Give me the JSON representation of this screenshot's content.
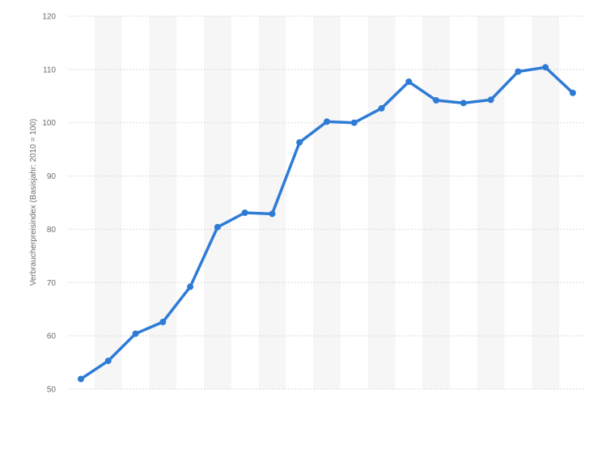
{
  "chart_data": {
    "type": "line",
    "title": "",
    "xlabel": "",
    "ylabel": "Verbraucherpreisindex (Basisjahr: 2010 = 100)",
    "ylim": [
      50,
      120
    ],
    "yticks": [
      "120",
      "110",
      "100",
      "90",
      "80",
      "70",
      "60",
      "50"
    ],
    "grid": true,
    "legend": "none",
    "colors": {
      "line": "#2e7bd6",
      "band": "#f6f6f6",
      "grid": "#d9d9d9",
      "text": "#6b6b6b"
    },
    "series": [
      {
        "values": [
          51.9,
          55.3,
          60.4,
          62.6,
          69.2,
          80.4,
          83.1,
          82.9,
          96.3,
          100.2,
          100.0,
          102.7,
          107.7,
          104.2,
          103.7,
          104.3,
          109.6,
          110.4,
          105.6
        ]
      }
    ]
  }
}
